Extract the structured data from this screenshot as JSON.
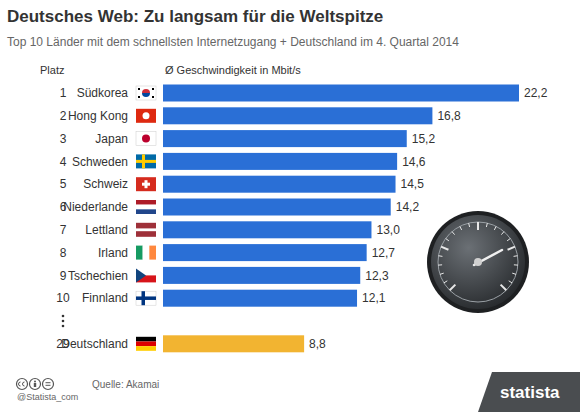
{
  "chart_data": {
    "type": "bar",
    "orientation": "horizontal",
    "title": "Deutsches Web: Zu langsam für die Weltspitze",
    "subtitle": "Top 10 Länder mit dem schnellsten Internetzugang + Deutschland im 4. Quartal 2014",
    "rank_header": "Platz",
    "value_header": "Ø Geschwindigkeit in Mbit/s",
    "ranks": [
      1,
      2,
      3,
      4,
      5,
      6,
      7,
      8,
      9,
      10,
      29
    ],
    "categories": [
      "Südkorea",
      "Hong Kong",
      "Japan",
      "Schweden",
      "Schweiz",
      "Niederlande",
      "Lettland",
      "Irland",
      "Tschechien",
      "Finnland",
      "Deutschland"
    ],
    "values": [
      22.2,
      16.8,
      15.2,
      14.6,
      14.5,
      14.2,
      13.0,
      12.7,
      12.3,
      12.1,
      8.8
    ],
    "value_labels": [
      "22,2",
      "16,8",
      "15,2",
      "14,6",
      "14,5",
      "14,2",
      "13,0",
      "12,7",
      "12,3",
      "12,1",
      "8,8"
    ],
    "colors": [
      "#2a6fd6",
      "#2a6fd6",
      "#2a6fd6",
      "#2a6fd6",
      "#2a6fd6",
      "#2a6fd6",
      "#2a6fd6",
      "#2a6fd6",
      "#2a6fd6",
      "#2a6fd6",
      "#f2b431"
    ],
    "xlim": [
      0,
      22.2
    ],
    "data_labels": true,
    "tick_labels": false,
    "grid": false,
    "source": "Quelle: Akamai",
    "credit": "@Statista_com",
    "logo": "statista"
  }
}
